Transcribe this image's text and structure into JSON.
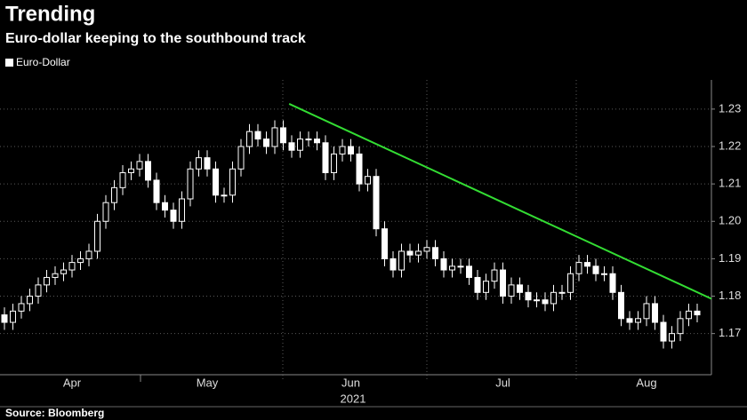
{
  "chart_data": {
    "type": "candlestick",
    "title": "Trending",
    "subtitle": "Euro-dollar keeping to the southbound track",
    "source": "Source: Bloomberg",
    "x_label": "2021",
    "ylim": [
      1.159,
      1.2378
    ],
    "yticks": [
      1.17,
      1.18,
      1.19,
      {
        "value": 1.2,
        "label": "1.20"
      },
      1.21,
      1.22,
      1.23
    ],
    "grid": true,
    "trendline": {
      "color": "#33dd33",
      "values": [
        1.2314,
        1.1793
      ]
    },
    "categories": [
      null,
      null,
      null,
      null,
      null,
      null,
      null,
      null,
      "Apr",
      null,
      null,
      null,
      null,
      null,
      null,
      null,
      null,
      null,
      null,
      null,
      null,
      null,
      null,
      null,
      "May",
      null,
      null,
      null,
      null,
      null,
      null,
      null,
      null,
      null,
      null,
      null,
      null,
      null,
      null,
      null,
      null,
      "Jun",
      null,
      null,
      null,
      null,
      null,
      null,
      null,
      null,
      null,
      null,
      null,
      null,
      null,
      null,
      null,
      null,
      null,
      "Jul",
      null,
      null,
      null,
      null,
      null,
      null,
      null,
      null,
      null,
      null,
      null,
      null,
      null,
      null,
      null,
      null,
      "Aug",
      null,
      null,
      null,
      null,
      null,
      null
    ],
    "series": [
      {
        "name": "Euro-Dollar",
        "color": "#ffffff",
        "open": [
          1.175,
          1.173,
          1.176,
          1.178,
          1.18,
          1.183,
          1.185,
          1.186,
          1.187,
          1.189,
          1.19,
          1.192,
          1.2,
          1.205,
          1.209,
          1.213,
          1.214,
          1.216,
          1.211,
          1.205,
          1.203,
          1.2,
          1.206,
          1.214,
          1.217,
          1.214,
          1.207,
          1.207,
          1.214,
          1.22,
          1.224,
          1.222,
          1.22,
          1.225,
          1.221,
          1.219,
          1.222,
          1.222,
          1.221,
          1.213,
          1.218,
          1.22,
          1.218,
          1.21,
          1.212,
          1.198,
          1.19,
          1.187,
          1.192,
          1.191,
          1.192,
          1.193,
          1.19,
          1.187,
          1.188,
          1.188,
          1.185,
          1.181,
          1.184,
          1.187,
          1.18,
          1.183,
          1.181,
          1.179,
          1.179,
          1.178,
          1.181,
          1.181,
          1.186,
          1.189,
          1.188,
          1.186,
          1.186,
          1.181,
          1.174,
          1.173,
          1.174,
          1.178,
          1.173,
          1.168,
          1.17,
          1.174,
          1.176
        ],
        "high": [
          1.177,
          1.178,
          1.18,
          1.182,
          1.185,
          1.187,
          1.188,
          1.189,
          1.191,
          1.192,
          1.194,
          1.202,
          1.207,
          1.211,
          1.215,
          1.216,
          1.218,
          1.218,
          1.213,
          1.207,
          1.205,
          1.208,
          1.216,
          1.219,
          1.219,
          1.216,
          1.209,
          1.216,
          1.222,
          1.226,
          1.226,
          1.224,
          1.227,
          1.227,
          1.223,
          1.224,
          1.224,
          1.224,
          1.223,
          1.22,
          1.222,
          1.222,
          1.22,
          1.214,
          1.214,
          1.2,
          1.192,
          1.194,
          1.194,
          1.194,
          1.195,
          1.195,
          1.192,
          1.19,
          1.19,
          1.19,
          1.187,
          1.186,
          1.189,
          1.189,
          1.185,
          1.185,
          1.183,
          1.181,
          1.181,
          1.183,
          1.183,
          1.188,
          1.191,
          1.191,
          1.19,
          1.188,
          1.188,
          1.183,
          1.176,
          1.176,
          1.18,
          1.18,
          1.175,
          1.172,
          1.176,
          1.178,
          1.178
        ],
        "low": [
          1.171,
          1.171,
          1.174,
          1.176,
          1.178,
          1.181,
          1.183,
          1.184,
          1.185,
          1.187,
          1.188,
          1.19,
          1.198,
          1.203,
          1.207,
          1.211,
          1.212,
          1.209,
          1.203,
          1.201,
          1.198,
          1.198,
          1.204,
          1.212,
          1.212,
          1.205,
          1.205,
          1.205,
          1.212,
          1.218,
          1.22,
          1.218,
          1.218,
          1.219,
          1.217,
          1.217,
          1.22,
          1.219,
          1.211,
          1.211,
          1.216,
          1.216,
          1.208,
          1.208,
          1.196,
          1.188,
          1.185,
          1.185,
          1.189,
          1.189,
          1.19,
          1.188,
          1.185,
          1.185,
          1.186,
          1.183,
          1.179,
          1.179,
          1.182,
          1.178,
          1.178,
          1.179,
          1.177,
          1.177,
          1.176,
          1.176,
          1.179,
          1.179,
          1.184,
          1.186,
          1.184,
          1.184,
          1.179,
          1.172,
          1.171,
          1.171,
          1.172,
          1.171,
          1.166,
          1.166,
          1.168,
          1.172,
          1.173
        ],
        "close": [
          1.173,
          1.176,
          1.178,
          1.18,
          1.183,
          1.185,
          1.186,
          1.187,
          1.189,
          1.19,
          1.192,
          1.2,
          1.205,
          1.209,
          1.213,
          1.214,
          1.216,
          1.211,
          1.205,
          1.203,
          1.2,
          1.206,
          1.214,
          1.217,
          1.214,
          1.207,
          1.207,
          1.214,
          1.22,
          1.224,
          1.222,
          1.22,
          1.225,
          1.221,
          1.219,
          1.222,
          1.222,
          1.221,
          1.213,
          1.218,
          1.22,
          1.218,
          1.21,
          1.212,
          1.198,
          1.19,
          1.187,
          1.192,
          1.191,
          1.192,
          1.193,
          1.19,
          1.187,
          1.188,
          1.188,
          1.185,
          1.181,
          1.184,
          1.187,
          1.18,
          1.183,
          1.181,
          1.179,
          1.179,
          1.178,
          1.181,
          1.181,
          1.186,
          1.189,
          1.188,
          1.186,
          1.186,
          1.181,
          1.174,
          1.173,
          1.174,
          1.178,
          1.173,
          1.168,
          1.17,
          1.174,
          1.176,
          1.175
        ]
      }
    ]
  }
}
